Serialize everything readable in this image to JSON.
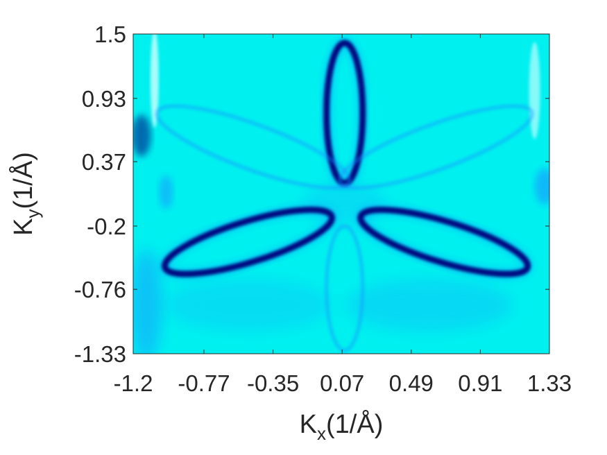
{
  "chart_data": {
    "type": "heatmap",
    "title": "",
    "xlabel": {
      "main": "K",
      "sub": "x",
      "unit": "(1/Å)"
    },
    "ylabel": {
      "main": "K",
      "sub": "y",
      "unit": "(1/Å)"
    },
    "xlim": [
      -1.2,
      1.33
    ],
    "ylim": [
      -1.33,
      1.5
    ],
    "x_ticks": [
      "-1.2",
      "-0.77",
      "-0.35",
      "0.07",
      "0.49",
      "0.91",
      "1.33"
    ],
    "y_ticks": [
      "-1.33",
      "-0.76",
      "-0.2",
      "0.37",
      "0.93",
      "1.5"
    ],
    "colormap": {
      "low": "#00f0f0",
      "mid": "#1a8cff",
      "high": "#00007a"
    },
    "grid": false,
    "features": [
      {
        "name": "lower-left-petal",
        "shape": "ellipse",
        "center": [
          -0.5,
          -0.34
        ],
        "semi_axes": [
          0.53,
          0.18
        ],
        "angle_deg": -17,
        "intensity": "high"
      },
      {
        "name": "lower-right-petal",
        "shape": "ellipse",
        "center": [
          0.69,
          -0.34
        ],
        "semi_axes": [
          0.53,
          0.18
        ],
        "angle_deg": 17,
        "intensity": "high"
      },
      {
        "name": "upper-central-petal",
        "shape": "ellipse",
        "center": [
          0.085,
          0.8
        ],
        "semi_axes": [
          0.11,
          0.62
        ],
        "angle_deg": 0,
        "intensity": "high"
      },
      {
        "name": "lower-central-petal",
        "shape": "ellipse",
        "center": [
          0.085,
          -0.75
        ],
        "semi_axes": [
          0.11,
          0.55
        ],
        "angle_deg": 0,
        "intensity": "low"
      },
      {
        "name": "upper-left-faint-petal",
        "shape": "ellipse",
        "center": [
          -0.47,
          0.5
        ],
        "semi_axes": [
          0.62,
          0.2
        ],
        "angle_deg": 20,
        "intensity": "low"
      },
      {
        "name": "upper-right-faint-petal",
        "shape": "ellipse",
        "center": [
          0.64,
          0.5
        ],
        "semi_axes": [
          0.62,
          0.2
        ],
        "angle_deg": -20,
        "intensity": "low"
      }
    ]
  }
}
